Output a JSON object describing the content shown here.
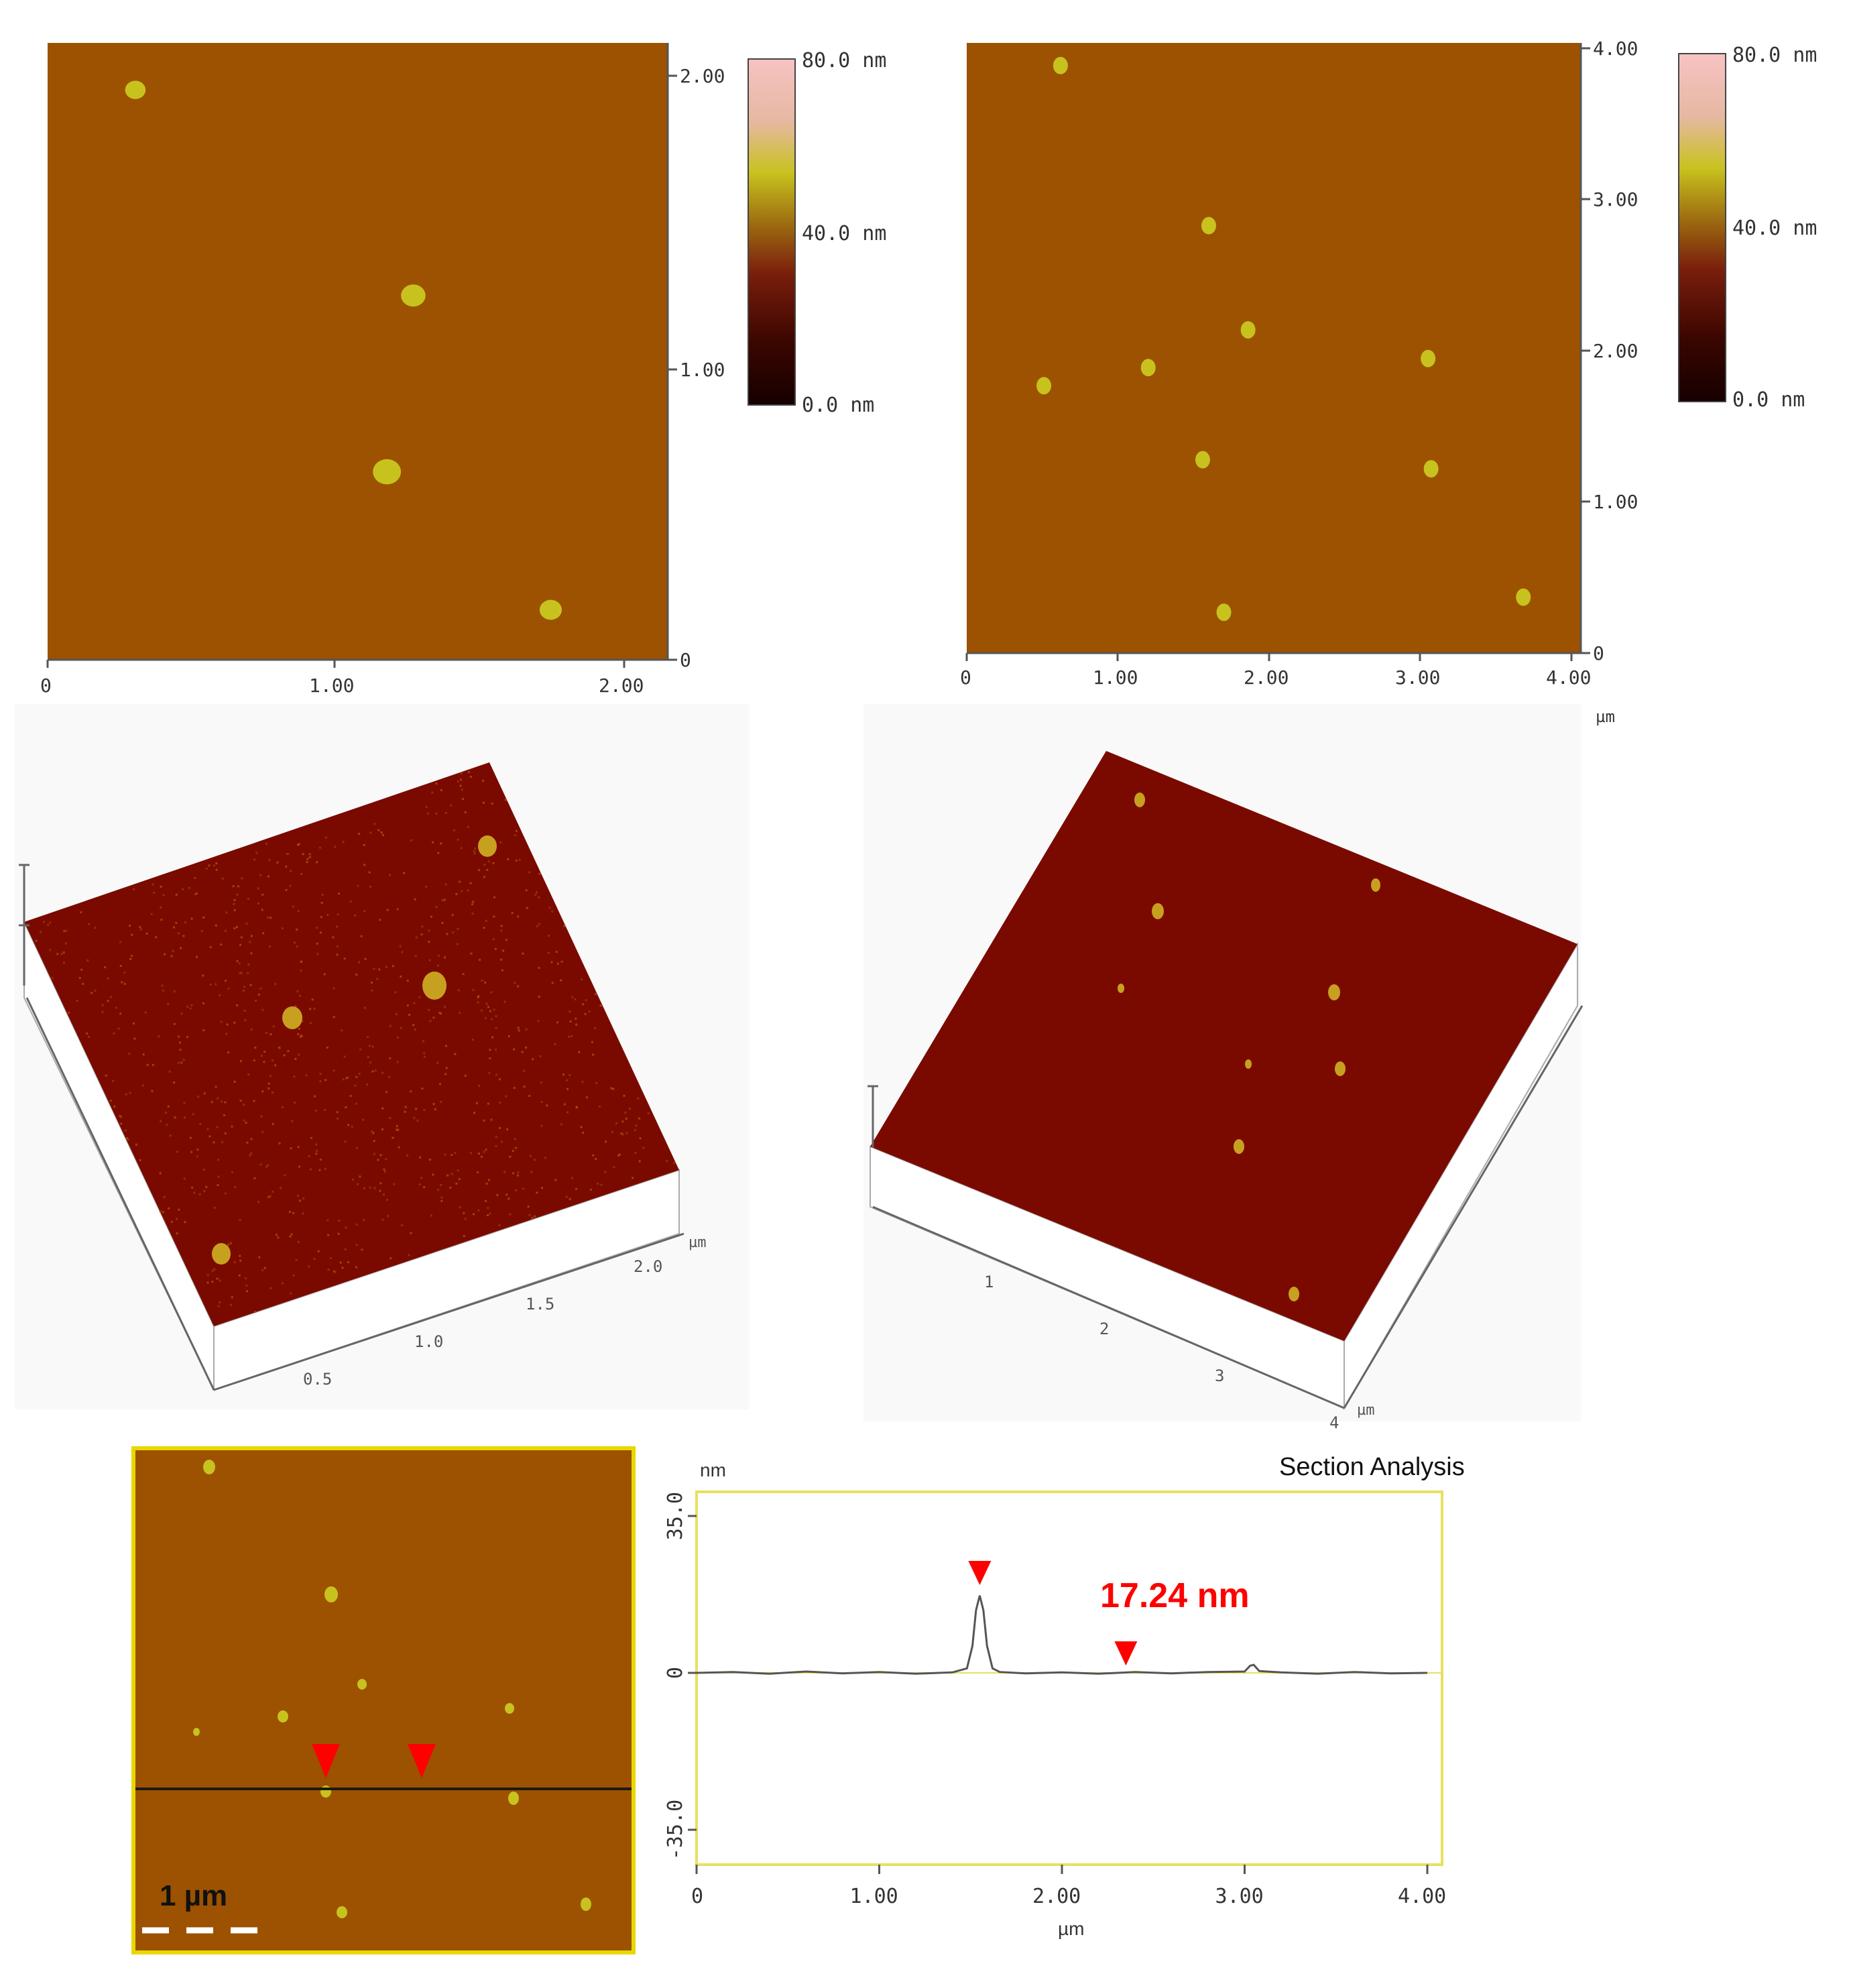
{
  "colors": {
    "height_map": "#9c5200",
    "surface_3d": "#7a0a00",
    "particle": "#c8c21e",
    "profile_frame": "#e8e060",
    "marker": "#ff0000"
  },
  "panel_a": {
    "y_ticks": [
      "2.00",
      "1.00",
      "0"
    ],
    "x_ticks": [
      "0",
      "1.00",
      "2.00"
    ],
    "unit": "µm",
    "colorbar": {
      "top": "80.0 nm",
      "mid": "40.0 nm",
      "bottom": "0.0 nm"
    },
    "particles": [
      {
        "x": 0.3,
        "y": 1.94,
        "r": 0.035
      },
      {
        "x": 1.25,
        "y": 1.24,
        "r": 0.042
      },
      {
        "x": 1.16,
        "y": 0.64,
        "r": 0.048
      },
      {
        "x": 1.72,
        "y": 0.17,
        "r": 0.038
      }
    ]
  },
  "panel_b": {
    "y_ticks": [
      "4.00",
      "3.00",
      "2.00",
      "1.00",
      "0"
    ],
    "x_ticks": [
      "0",
      "1.00",
      "2.00",
      "3.00",
      "4.00"
    ],
    "unit": "µm",
    "colorbar": {
      "top": "80.0 nm",
      "mid": "40.0 nm",
      "bottom": "0.0 nm"
    },
    "particles": [
      {
        "x": 0.62,
        "y": 3.89
      },
      {
        "x": 1.6,
        "y": 2.83
      },
      {
        "x": 1.86,
        "y": 2.14
      },
      {
        "x": 1.2,
        "y": 1.89
      },
      {
        "x": 0.51,
        "y": 1.77
      },
      {
        "x": 3.05,
        "y": 1.95
      },
      {
        "x": 1.56,
        "y": 1.28
      },
      {
        "x": 3.07,
        "y": 1.22
      },
      {
        "x": 1.7,
        "y": 0.27
      },
      {
        "x": 3.68,
        "y": 0.37
      }
    ]
  },
  "panel_c": {
    "x_ticks": [
      "0.5",
      "1.0",
      "1.5",
      "2.0"
    ],
    "unit": "µm"
  },
  "panel_d": {
    "x_ticks": [
      "1",
      "2",
      "3",
      "4"
    ],
    "unit": "µm"
  },
  "panel_e": {
    "scale_label": "1 µm"
  },
  "chart_data": {
    "type": "line",
    "title": "Section Analysis",
    "ylabel": "nm",
    "xlabel": "µm",
    "xlim": [
      0,
      4.0
    ],
    "ylim": [
      -35,
      35
    ],
    "x_ticks": [
      "0",
      "1.00",
      "2.00",
      "3.00",
      "4.00"
    ],
    "y_ticks": [
      "35.0",
      "0",
      "-35.0"
    ],
    "annotation": "17.24 nm",
    "markers_x": [
      1.55,
      2.35
    ],
    "series": [
      {
        "x": [
          0,
          0.2,
          0.4,
          0.6,
          0.8,
          1.0,
          1.2,
          1.4,
          1.48,
          1.51,
          1.53,
          1.55,
          1.57,
          1.59,
          1.62,
          1.66,
          1.8,
          2.0,
          2.2,
          2.4,
          2.6,
          2.8,
          3.0,
          3.03,
          3.05,
          3.08,
          3.2,
          3.4,
          3.6,
          3.8,
          4.0
        ],
        "y": [
          0,
          0.2,
          -0.2,
          0.3,
          -0.1,
          0.2,
          -0.2,
          0.1,
          1.0,
          6.0,
          14.0,
          17.24,
          14.0,
          6.0,
          1.0,
          0.2,
          -0.1,
          0.1,
          -0.2,
          0.2,
          -0.1,
          0.2,
          0.3,
          1.6,
          1.8,
          0.4,
          0.1,
          -0.2,
          0.2,
          -0.1,
          0
        ]
      }
    ]
  }
}
